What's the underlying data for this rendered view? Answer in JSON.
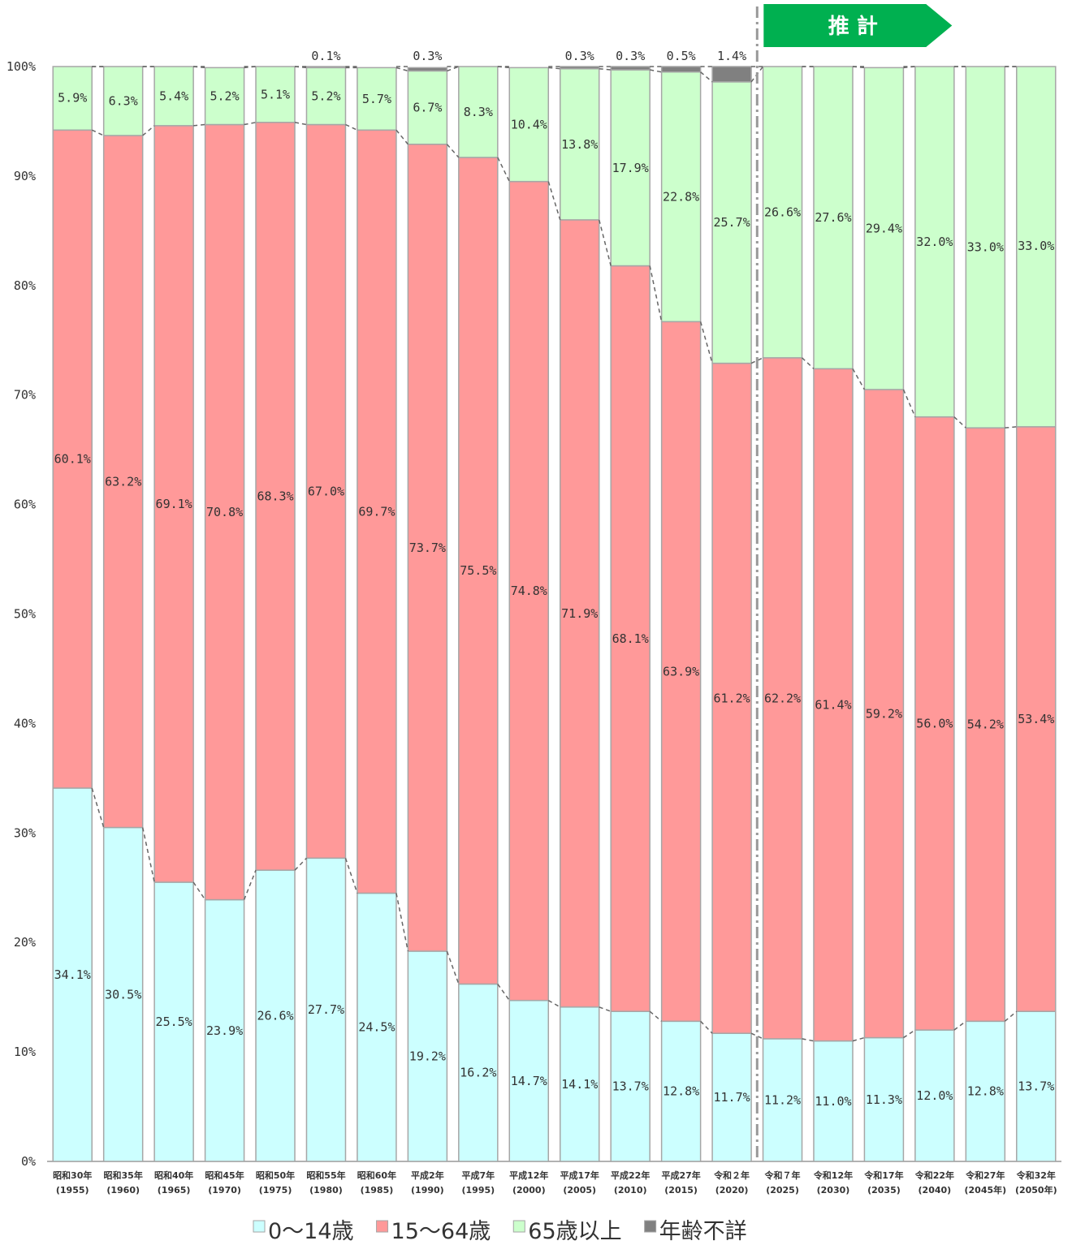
{
  "chart_data": {
    "type": "bar",
    "stacked": true,
    "percent": true,
    "title": "",
    "xlabel": "",
    "ylabel": "",
    "ylim": [
      0,
      100
    ],
    "yticks": [
      "0%",
      "10%",
      "20%",
      "30%",
      "40%",
      "50%",
      "60%",
      "70%",
      "80%",
      "90%",
      "100%"
    ],
    "grid": false,
    "legend_position": "bottom",
    "categories": [
      {
        "era": "昭和30年",
        "year": "(1955)"
      },
      {
        "era": "昭和35年",
        "year": "(1960)"
      },
      {
        "era": "昭和40年",
        "year": "(1965)"
      },
      {
        "era": "昭和45年",
        "year": "(1970)"
      },
      {
        "era": "昭和50年",
        "year": "(1975)"
      },
      {
        "era": "昭和55年",
        "year": "(1980)"
      },
      {
        "era": "昭和60年",
        "year": "(1985)"
      },
      {
        "era": "平成2年",
        "year": "(1990)"
      },
      {
        "era": "平成7年",
        "year": "(1995)"
      },
      {
        "era": "平成12年",
        "year": "(2000)"
      },
      {
        "era": "平成17年",
        "year": "(2005)"
      },
      {
        "era": "平成22年",
        "year": "(2010)"
      },
      {
        "era": "平成27年",
        "year": "(2015)"
      },
      {
        "era": "令和２年",
        "year": "(2020)"
      },
      {
        "era": "令和７年",
        "year": "(2025)"
      },
      {
        "era": "令和12年",
        "year": "(2030)"
      },
      {
        "era": "令和17年",
        "year": "(2035)"
      },
      {
        "era": "令和22年",
        "year": "(2040)"
      },
      {
        "era": "令和27年",
        "year": "(2045年)"
      },
      {
        "era": "令和32年",
        "year": "(2050年)"
      }
    ],
    "series": [
      {
        "name": "0～14歳",
        "color": "#ccffff",
        "values": [
          34.1,
          30.5,
          25.5,
          23.9,
          26.6,
          27.7,
          24.5,
          19.2,
          16.2,
          14.7,
          14.1,
          13.7,
          12.8,
          11.7,
          11.2,
          11.0,
          11.3,
          12.0,
          12.8,
          13.7
        ],
        "labels": [
          "34.1%",
          "30.5%",
          "25.5%",
          "23.9%",
          "26.6%",
          "27.7%",
          "24.5%",
          "19.2%",
          "16.2%",
          "14.7%",
          "14.1%",
          "13.7%",
          "12.8%",
          "11.7%",
          "11.2%",
          "11.0%",
          "11.3%",
          "12.0%",
          "12.8%",
          "13.7%"
        ]
      },
      {
        "name": "15～64歳",
        "color": "#ff9999",
        "values": [
          60.1,
          63.2,
          69.1,
          70.8,
          68.3,
          67.0,
          69.7,
          73.7,
          75.5,
          74.8,
          71.9,
          68.1,
          63.9,
          61.2,
          62.2,
          61.4,
          59.2,
          56.0,
          54.2,
          53.4
        ],
        "labels": [
          "60.1%",
          "63.2%",
          "69.1%",
          "70.8%",
          "68.3%",
          "67.0%",
          "69.7%",
          "73.7%",
          "75.5%",
          "74.8%",
          "71.9%",
          "68.1%",
          "63.9%",
          "61.2%",
          "62.2%",
          "61.4%",
          "59.2%",
          "56.0%",
          "54.2%",
          "53.4%"
        ]
      },
      {
        "name": "65歳以上",
        "color": "#ccffcc",
        "values": [
          5.9,
          6.3,
          5.4,
          5.2,
          5.1,
          5.2,
          5.7,
          6.7,
          8.3,
          10.4,
          13.8,
          17.9,
          22.8,
          25.7,
          26.6,
          27.6,
          29.4,
          32.0,
          33.0,
          33.0
        ],
        "labels": [
          "5.9%",
          "6.3%",
          "5.4%",
          "5.2%",
          "5.1%",
          "5.2%",
          "5.7%",
          "6.7%",
          "8.3%",
          "10.4%",
          "13.8%",
          "17.9%",
          "22.8%",
          "25.7%",
          "26.6%",
          "27.6%",
          "29.4%",
          "32.0%",
          "33.0%",
          "33.0%"
        ]
      },
      {
        "name": "年齢不詳",
        "color": "#808080",
        "values": [
          0,
          0,
          0,
          0,
          0,
          0.1,
          0,
          0.3,
          0,
          0,
          0.3,
          0.3,
          0.5,
          1.4,
          0,
          0,
          0,
          0,
          0,
          0
        ],
        "labels": [
          "",
          "",
          "",
          "",
          "",
          "0.1%",
          "",
          "0.3%",
          "",
          "",
          "0.3%",
          "0.3%",
          "0.5%",
          "1.4%",
          "",
          "",
          "",
          "",
          "",
          ""
        ]
      }
    ],
    "projection": {
      "label": "推 計",
      "start_category": "令和７年",
      "color": "#00b050"
    }
  }
}
